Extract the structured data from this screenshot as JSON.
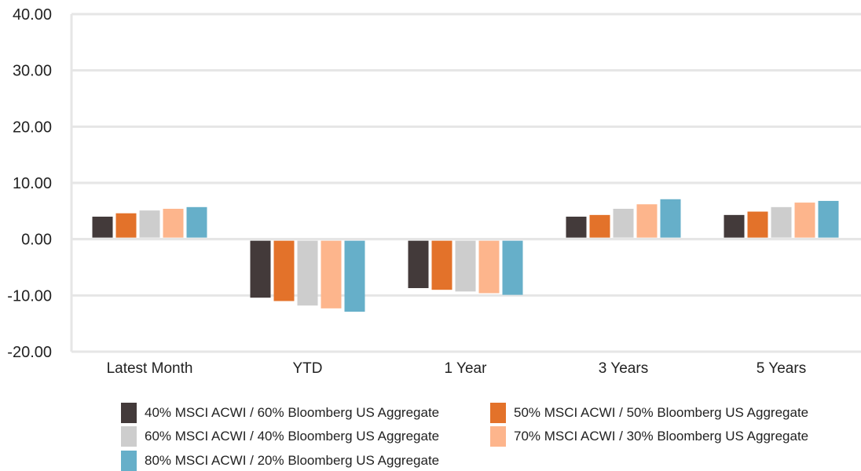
{
  "chart_data": {
    "type": "bar",
    "categories": [
      "Latest Month",
      "YTD",
      "1 Year",
      "3 Years",
      "5 Years"
    ],
    "series": [
      {
        "name": "40% MSCI ACWI / 60% Bloomberg US Aggregate",
        "color": "#433a3a",
        "values": [
          4.0,
          -10.4,
          -8.7,
          4.0,
          4.3
        ]
      },
      {
        "name": "50% MSCI ACWI / 50% Bloomberg US Aggregate",
        "color": "#e3722a",
        "values": [
          4.6,
          -11.0,
          -9.0,
          4.3,
          4.9
        ]
      },
      {
        "name": "60% MSCI ACWI / 40% Bloomberg US Aggregate",
        "color": "#cdcdcd",
        "values": [
          5.1,
          -11.8,
          -9.3,
          5.4,
          5.7
        ]
      },
      {
        "name": "70% MSCI ACWI / 30% Bloomberg US Aggregate",
        "color": "#fdb58c",
        "values": [
          5.4,
          -12.3,
          -9.6,
          6.2,
          6.5
        ]
      },
      {
        "name": "80% MSCI ACWI / 20% Bloomberg US Aggregate",
        "color": "#66afc9",
        "values": [
          5.7,
          -12.9,
          -9.9,
          7.1,
          6.8
        ]
      }
    ],
    "yticks": [
      "40.00",
      "30.00",
      "20.00",
      "10.00",
      "0.00",
      "-10.00",
      "-20.00"
    ],
    "ylim": [
      -20,
      40
    ],
    "grid": true,
    "legend_position": "bottom"
  }
}
